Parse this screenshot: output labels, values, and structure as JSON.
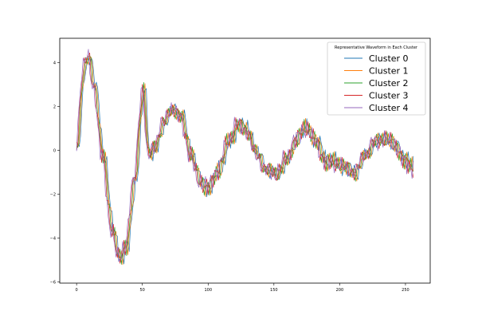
{
  "chart_data": {
    "type": "line",
    "title": "",
    "xlabel": "",
    "ylabel": "",
    "xlim": [
      -12.8,
      268.8
    ],
    "ylim": [
      -6.05,
      5.1
    ],
    "xticks": [
      0,
      50,
      100,
      150,
      200,
      250
    ],
    "yticks": [
      -6,
      -4,
      -2,
      0,
      2,
      4
    ],
    "grid": false,
    "legend": {
      "title": "Representative Waveform in Each Cluster",
      "placement": "upper right"
    },
    "series": [
      {
        "name": "Cluster 0",
        "color": "#1f77b4",
        "phase": 0.0
      },
      {
        "name": "Cluster 1",
        "color": "#ff7f0e",
        "phase": 1.3
      },
      {
        "name": "Cluster 2",
        "color": "#2ca02c",
        "phase": 2.6
      },
      {
        "name": "Cluster 3",
        "color": "#d62728",
        "phase": 3.9
      },
      {
        "name": "Cluster 4",
        "color": "#9467bd",
        "phase": 5.2
      }
    ],
    "x": [
      0,
      6,
      9,
      14,
      20,
      27,
      33,
      38,
      44,
      51,
      55,
      60,
      66,
      73,
      80,
      87,
      94,
      100,
      108,
      116,
      123,
      130,
      137,
      145,
      152,
      160,
      167,
      175,
      182,
      190,
      197,
      205,
      212,
      220,
      227,
      235,
      243,
      250,
      256
    ],
    "base_profile": [
      0.0,
      3.8,
      4.3,
      2.8,
      -0.2,
      -3.5,
      -5.0,
      -4.3,
      -1.5,
      2.8,
      -0.3,
      0.2,
      1.2,
      1.9,
      1.5,
      -0.2,
      -1.4,
      -1.7,
      -0.9,
      0.4,
      1.2,
      0.9,
      -0.2,
      -0.9,
      -1.1,
      -0.4,
      0.5,
      1.0,
      0.4,
      -0.5,
      -0.6,
      -0.8,
      -1.0,
      -0.2,
      0.4,
      0.5,
      0.2,
      -0.5,
      -0.8
    ]
  }
}
